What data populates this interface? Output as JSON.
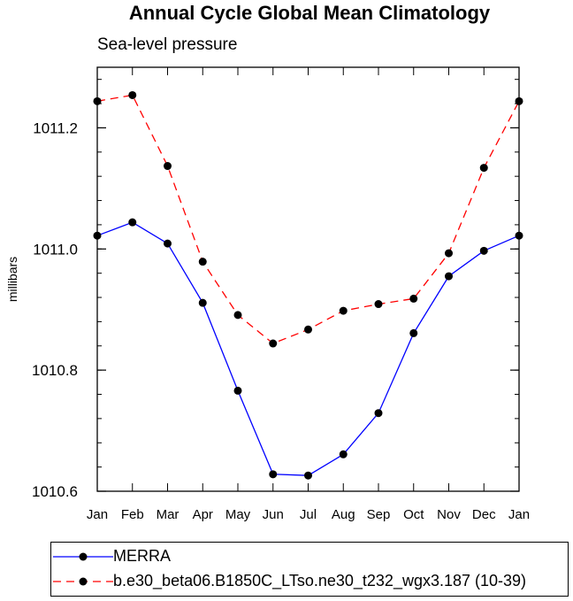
{
  "chart_data": {
    "type": "line",
    "title": "Annual Cycle Global Mean Climatology",
    "subtitle": "Sea-level pressure",
    "xlabel": "",
    "ylabel": "millibars",
    "categories": [
      "Jan",
      "Feb",
      "Mar",
      "Apr",
      "May",
      "Jun",
      "Jul",
      "Aug",
      "Sep",
      "Oct",
      "Nov",
      "Dec",
      "Jan"
    ],
    "ylim": [
      1010.6,
      1011.3
    ],
    "yticks": [
      1010.6,
      1010.8,
      1011.0,
      1011.2
    ],
    "ytick_labels": [
      "1010.6",
      "1010.8",
      "1011.0",
      "1011.2"
    ],
    "series": [
      {
        "name": "MERRA",
        "color": "#0000ff",
        "dash": "solid",
        "values": [
          1011.022,
          1011.044,
          1011.009,
          1010.911,
          1010.766,
          1010.628,
          1010.626,
          1010.661,
          1010.729,
          1010.861,
          1010.955,
          1010.997,
          1011.022
        ]
      },
      {
        "name": "b.e30_beta06.B1850C_LTso.ne30_t232_wgx3.187 (10-39)",
        "color": "#ff0000",
        "dash": "dashed",
        "values": [
          1011.244,
          1011.254,
          1011.137,
          1010.979,
          1010.891,
          1010.844,
          1010.867,
          1010.898,
          1010.909,
          1010.918,
          1010.993,
          1011.134,
          1011.244
        ]
      }
    ],
    "legend_position": "bottom"
  }
}
